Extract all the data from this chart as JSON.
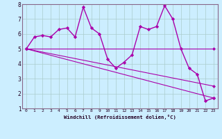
{
  "xlabel": "Windchill (Refroidissement éolien,°C)",
  "bg_color": "#cceeff",
  "grid_color": "#aacccc",
  "line_color": "#aa00aa",
  "xlim": [
    -0.5,
    23.5
  ],
  "ylim": [
    1,
    8
  ],
  "yticks": [
    1,
    2,
    3,
    4,
    5,
    6,
    7,
    8
  ],
  "xticks": [
    0,
    1,
    2,
    3,
    4,
    5,
    6,
    7,
    8,
    9,
    10,
    11,
    12,
    13,
    14,
    15,
    16,
    17,
    18,
    19,
    20,
    21,
    22,
    23
  ],
  "series": [
    {
      "x": [
        0,
        1,
        2,
        3,
        4,
        5,
        6,
        7,
        8,
        9,
        10,
        11,
        12,
        13,
        14,
        15,
        16,
        17,
        18,
        19,
        20,
        21,
        22,
        23
      ],
      "y": [
        5.0,
        5.8,
        5.9,
        5.8,
        6.3,
        6.4,
        5.8,
        7.8,
        6.4,
        6.0,
        4.3,
        3.7,
        4.1,
        4.6,
        6.5,
        6.3,
        6.5,
        7.9,
        7.0,
        5.0,
        3.7,
        3.3,
        1.5,
        1.7
      ],
      "marker": "D",
      "lw": 1.0,
      "ms": 2.2
    },
    {
      "x": [
        0,
        23
      ],
      "y": [
        5.0,
        5.0
      ],
      "marker": "D",
      "lw": 0.8,
      "ms": 2.0
    },
    {
      "x": [
        0,
        23
      ],
      "y": [
        5.0,
        2.5
      ],
      "marker": "D",
      "lw": 0.8,
      "ms": 2.0
    },
    {
      "x": [
        0,
        23
      ],
      "y": [
        5.0,
        1.7
      ],
      "marker": "D",
      "lw": 0.8,
      "ms": 2.0
    }
  ]
}
